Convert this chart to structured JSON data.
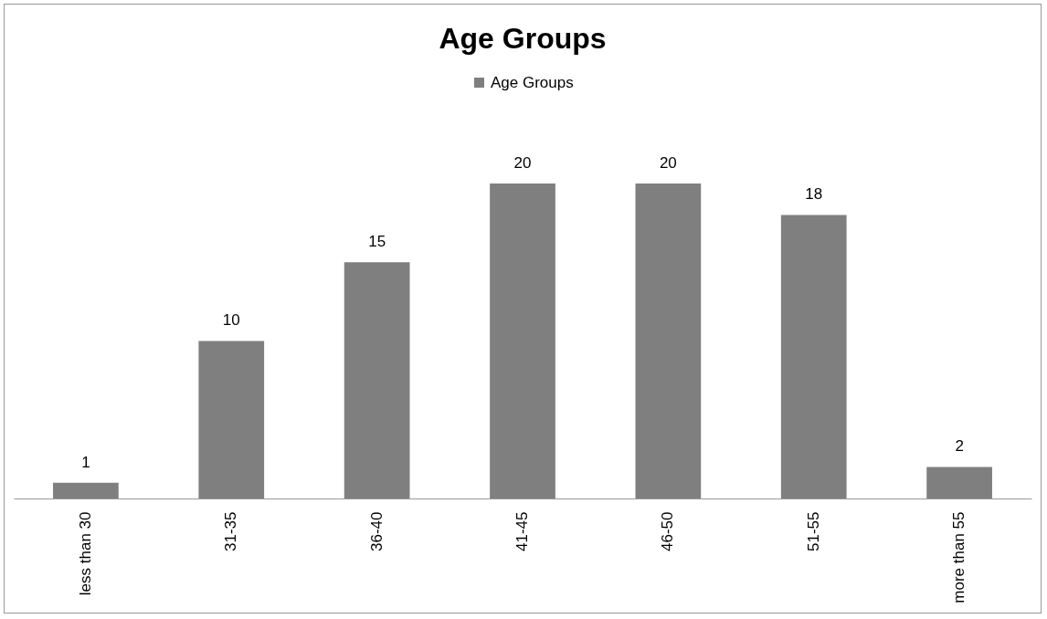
{
  "chart_data": {
    "type": "bar",
    "title": "Age Groups",
    "categories": [
      "less than 30",
      "31-35",
      "36-40",
      "41-45",
      "46-50",
      "51-55",
      "more than 55"
    ],
    "series": [
      {
        "name": "Age Groups",
        "color": "#7f7f7f",
        "values": [
          1,
          10,
          15,
          20,
          20,
          18,
          2
        ]
      }
    ],
    "data_labels": true,
    "legend": "top"
  }
}
